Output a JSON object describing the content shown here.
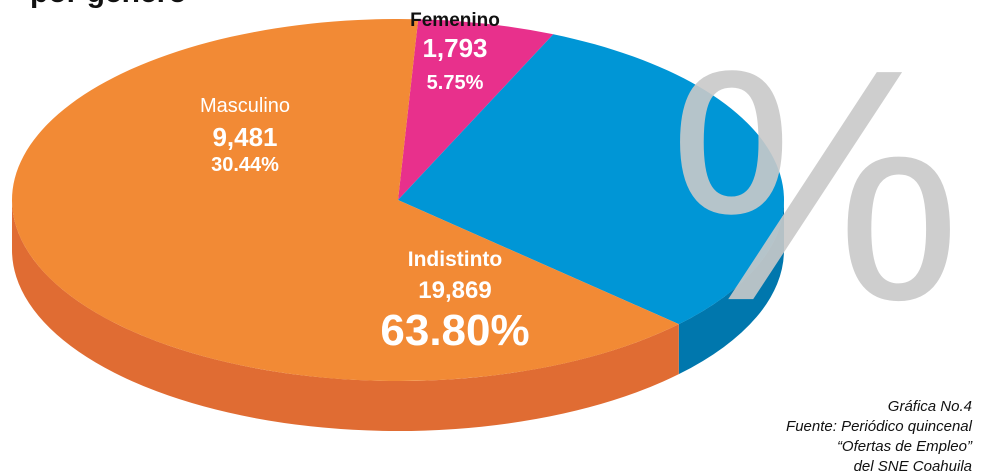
{
  "chart_data": {
    "type": "pie3d",
    "title": "por género",
    "watermark": "%",
    "categories": [
      "Femenino",
      "Masculino",
      "Indistinto"
    ],
    "values": [
      1793,
      9481,
      19869
    ],
    "value_labels": [
      "1,793",
      "9,481",
      "19,869"
    ],
    "percentages": [
      5.75,
      30.44,
      63.8
    ],
    "percentage_labels": [
      "5.75%",
      "30.44%",
      "63.80%"
    ],
    "colors": [
      "#e8308c",
      "#0096d6",
      "#f28a35"
    ],
    "side_colors": [
      "#b8246e",
      "#0077ad",
      "#e06c33"
    ],
    "notes": [
      "Gráfica No.4",
      "Fuente: Periódico quincenal",
      "“Ofertas de Empleo”",
      "del SNE Coahuila"
    ]
  }
}
